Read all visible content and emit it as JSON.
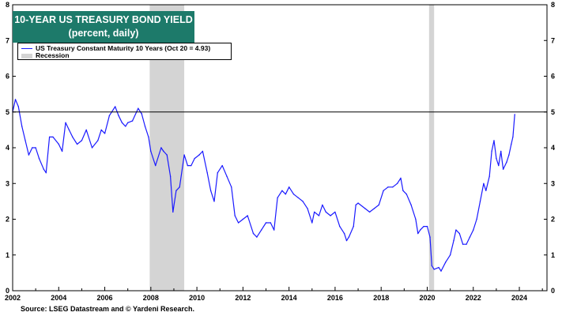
{
  "title_line1": "10-YEAR US TREASURY BOND YIELD",
  "title_line2": "(percent, daily)",
  "source": "Source: LSEG Datastream and © Yardeni Research.",
  "chart_data": {
    "type": "line",
    "xlim": [
      2002.0,
      2025.2
    ],
    "ylim": [
      0,
      8
    ],
    "x_ticks": [
      2002,
      2004,
      2006,
      2008,
      2010,
      2012,
      2014,
      2016,
      2018,
      2020,
      2022,
      2024
    ],
    "y_ticks_left": [
      0,
      1,
      2,
      3,
      4,
      5,
      6,
      7,
      8
    ],
    "y_ticks_right": [
      0,
      1,
      2,
      3,
      4,
      5,
      6,
      7,
      8
    ],
    "reference_line": 5,
    "grid": false,
    "legend_position": "top-left",
    "series": [
      {
        "name": "US Treasury Constant Maturity 10 Years  (Oct 20 = 4.93)",
        "color": "#1a1aff",
        "x": [
          2002.0,
          2002.12,
          2002.25,
          2002.4,
          2002.55,
          2002.7,
          2002.85,
          2003.0,
          2003.15,
          2003.35,
          2003.45,
          2003.6,
          2003.75,
          2004.0,
          2004.15,
          2004.3,
          2004.45,
          2004.6,
          2004.8,
          2005.0,
          2005.2,
          2005.45,
          2005.7,
          2005.85,
          2006.0,
          2006.2,
          2006.45,
          2006.6,
          2006.75,
          2006.9,
          2007.0,
          2007.2,
          2007.45,
          2007.6,
          2007.75,
          2007.9,
          2008.0,
          2008.2,
          2008.45,
          2008.55,
          2008.7,
          2008.85,
          2008.96,
          2009.1,
          2009.25,
          2009.45,
          2009.6,
          2009.75,
          2009.9,
          2010.1,
          2010.25,
          2010.45,
          2010.6,
          2010.75,
          2010.9,
          2011.1,
          2011.3,
          2011.5,
          2011.65,
          2011.8,
          2012.0,
          2012.2,
          2012.45,
          2012.6,
          2012.8,
          2013.0,
          2013.2,
          2013.35,
          2013.5,
          2013.7,
          2013.85,
          2014.0,
          2014.2,
          2014.4,
          2014.6,
          2014.8,
          2015.0,
          2015.1,
          2015.3,
          2015.45,
          2015.6,
          2015.8,
          2016.0,
          2016.2,
          2016.4,
          2016.5,
          2016.6,
          2016.8,
          2016.9,
          2017.0,
          2017.3,
          2017.5,
          2017.7,
          2017.9,
          2018.1,
          2018.3,
          2018.5,
          2018.7,
          2018.85,
          2018.95,
          2019.1,
          2019.3,
          2019.5,
          2019.6,
          2019.7,
          2019.85,
          2020.0,
          2020.12,
          2020.2,
          2020.3,
          2020.5,
          2020.6,
          2020.8,
          2021.0,
          2021.15,
          2021.25,
          2021.4,
          2021.55,
          2021.7,
          2021.85,
          2022.0,
          2022.15,
          2022.3,
          2022.45,
          2022.55,
          2022.7,
          2022.8,
          2022.9,
          2023.0,
          2023.1,
          2023.2,
          2023.3,
          2023.45,
          2023.55,
          2023.65,
          2023.72,
          2023.8
        ],
        "y": [
          5.0,
          5.35,
          5.15,
          4.6,
          4.2,
          3.8,
          4.0,
          4.0,
          3.7,
          3.4,
          3.3,
          4.3,
          4.3,
          4.1,
          3.9,
          4.7,
          4.5,
          4.3,
          4.1,
          4.2,
          4.5,
          4.0,
          4.2,
          4.5,
          4.4,
          4.9,
          5.15,
          4.9,
          4.7,
          4.6,
          4.7,
          4.75,
          5.1,
          4.95,
          4.6,
          4.3,
          3.9,
          3.5,
          4.0,
          3.9,
          3.8,
          3.2,
          2.2,
          2.8,
          2.9,
          3.8,
          3.5,
          3.5,
          3.7,
          3.8,
          3.9,
          3.3,
          2.8,
          2.5,
          3.3,
          3.5,
          3.2,
          2.9,
          2.1,
          1.9,
          2.0,
          2.1,
          1.6,
          1.5,
          1.7,
          1.9,
          1.9,
          1.7,
          2.6,
          2.8,
          2.7,
          2.9,
          2.7,
          2.6,
          2.5,
          2.3,
          1.9,
          2.2,
          2.1,
          2.4,
          2.2,
          2.1,
          2.2,
          1.8,
          1.6,
          1.4,
          1.5,
          1.8,
          2.4,
          2.45,
          2.3,
          2.2,
          2.3,
          2.4,
          2.8,
          2.9,
          2.9,
          3.0,
          3.15,
          2.8,
          2.7,
          2.4,
          2.0,
          1.6,
          1.7,
          1.8,
          1.8,
          1.5,
          0.7,
          0.6,
          0.65,
          0.55,
          0.8,
          1.0,
          1.4,
          1.7,
          1.6,
          1.3,
          1.3,
          1.5,
          1.7,
          2.0,
          2.5,
          3.0,
          2.8,
          3.2,
          3.9,
          4.2,
          3.7,
          3.5,
          3.9,
          3.4,
          3.6,
          3.8,
          4.1,
          4.3,
          4.93
        ]
      }
    ],
    "recessions": [
      {
        "name": "Recession",
        "start": 2007.95,
        "end": 2009.45,
        "color": "#d4d4d4"
      },
      {
        "start": 2020.08,
        "end": 2020.3,
        "color": "#d4d4d4"
      }
    ]
  }
}
